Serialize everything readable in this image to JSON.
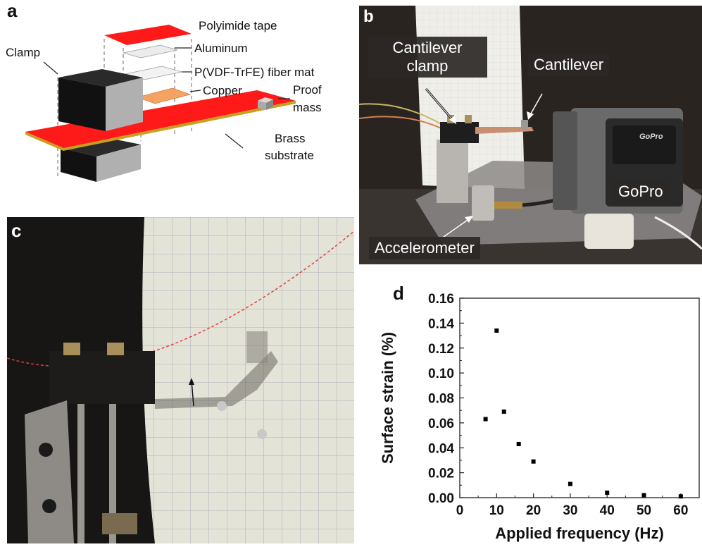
{
  "panel_a": {
    "label": "a",
    "clamp": "Clamp",
    "polyimide": "Polyimide tape",
    "aluminum": "Aluminum",
    "fiber_mat": "P(VDF-TrFE) fiber mat",
    "copper": "Copper",
    "proof_line1": "Proof",
    "proof_line2": "mass",
    "brass_line1": "Brass",
    "brass_line2": "substrate",
    "colors": {
      "tape": "#ff1a1a",
      "brass": "#c8a020",
      "copper": "#f4a460",
      "clamp": "#111111"
    }
  },
  "panel_b": {
    "label": "b",
    "clamp_line1": "Cantilever",
    "clamp_line2": "clamp",
    "cantilever": "Cantilever",
    "gopro": "GoPro",
    "gopro_brand": "GoPro",
    "accelerometer": "Accelerometer"
  },
  "panel_c": {
    "label": "c"
  },
  "panel_d": {
    "label": "d",
    "chart_data": {
      "type": "scatter",
      "xlabel": "Applied frequency (Hz)",
      "ylabel": "Surface strain (%)",
      "xlim": [
        0,
        65
      ],
      "ylim": [
        0,
        0.16
      ],
      "xticks": [
        "0",
        "10",
        "20",
        "30",
        "40",
        "50",
        "60"
      ],
      "yticks": [
        "0.00",
        "0.02",
        "0.04",
        "0.06",
        "0.08",
        "0.10",
        "0.12",
        "0.14",
        "0.16"
      ],
      "x": [
        7,
        10,
        12,
        16,
        20,
        30,
        40,
        50,
        60
      ],
      "y": [
        0.063,
        0.134,
        0.069,
        0.043,
        0.029,
        0.011,
        0.004,
        0.002,
        0.001
      ],
      "grid": false,
      "marker_color": "#000000"
    }
  }
}
